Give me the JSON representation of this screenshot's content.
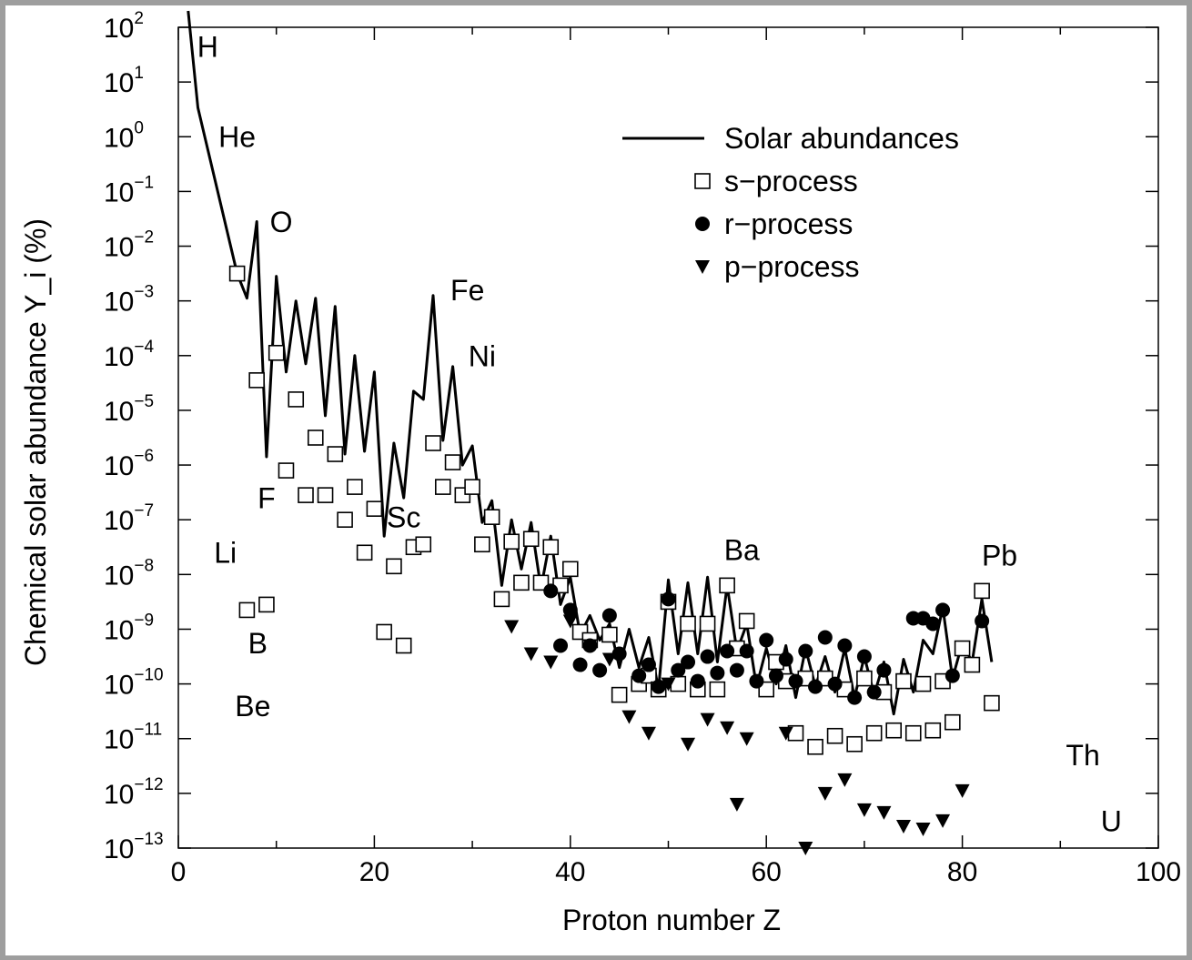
{
  "chart_data": {
    "type": "scatter",
    "title": "",
    "xlabel": "Proton number Z",
    "ylabel": "Chemical solar abundance Y_i (%)",
    "xlim": [
      0,
      100
    ],
    "ylim_log10": [
      -13,
      2
    ],
    "y_scale": "log",
    "x_ticks": [
      0,
      20,
      40,
      60,
      80,
      100
    ],
    "y_ticks": [
      {
        "base": "10",
        "exp": "2"
      },
      {
        "base": "10",
        "exp": "1"
      },
      {
        "base": "10",
        "exp": "0"
      },
      {
        "base": "10",
        "exp": "−1"
      },
      {
        "base": "10",
        "exp": "−2"
      },
      {
        "base": "10",
        "exp": "−3"
      },
      {
        "base": "10",
        "exp": "−4"
      },
      {
        "base": "10",
        "exp": "−5"
      },
      {
        "base": "10",
        "exp": "−6"
      },
      {
        "base": "10",
        "exp": "−7"
      },
      {
        "base": "10",
        "exp": "−8"
      },
      {
        "base": "10",
        "exp": "−9"
      },
      {
        "base": "10",
        "exp": "−10"
      },
      {
        "base": "10",
        "exp": "−11"
      },
      {
        "base": "10",
        "exp": "−12"
      },
      {
        "base": "10",
        "exp": "−13"
      }
    ],
    "legend": {
      "placement": "top-right",
      "entries": [
        {
          "label": "Solar abundances",
          "marker": "line"
        },
        {
          "label": "s−process",
          "marker": "open-square"
        },
        {
          "label": "r−process",
          "marker": "filled-circle"
        },
        {
          "label": "p−process",
          "marker": "filled-triangle-down"
        }
      ]
    },
    "series": [
      {
        "name": "Solar abundances",
        "marker": "line",
        "points": [
          [
            1,
            2.3
          ],
          [
            2,
            0.53
          ],
          [
            6,
            -2.5
          ],
          [
            7,
            -2.95
          ],
          [
            8,
            -1.55
          ],
          [
            9,
            -5.85
          ],
          [
            10,
            -2.55
          ],
          [
            11,
            -4.3
          ],
          [
            12,
            -3.0
          ],
          [
            13,
            -4.15
          ],
          [
            14,
            -2.95
          ],
          [
            15,
            -5.1
          ],
          [
            16,
            -3.1
          ],
          [
            17,
            -5.8
          ],
          [
            18,
            -4.0
          ],
          [
            19,
            -5.75
          ],
          [
            20,
            -4.3
          ],
          [
            21,
            -7.3
          ],
          [
            22,
            -5.6
          ],
          [
            23,
            -6.6
          ],
          [
            24,
            -4.65
          ],
          [
            25,
            -4.8
          ],
          [
            26,
            -2.9
          ],
          [
            27,
            -5.55
          ],
          [
            28,
            -4.2
          ],
          [
            29,
            -6.0
          ],
          [
            30,
            -5.65
          ],
          [
            31,
            -7.05
          ],
          [
            32,
            -6.65
          ],
          [
            33,
            -8.2
          ],
          [
            34,
            -7.0
          ],
          [
            35,
            -7.9
          ],
          [
            36,
            -7.05
          ],
          [
            37,
            -8.25
          ],
          [
            38,
            -7.3
          ],
          [
            39,
            -8.55
          ],
          [
            40,
            -8.05
          ],
          [
            41,
            -9.1
          ],
          [
            42,
            -8.75
          ],
          [
            43,
            -9.2
          ],
          [
            44,
            -8.9
          ],
          [
            45,
            -9.7
          ],
          [
            46,
            -9.0
          ],
          [
            47,
            -9.7
          ],
          [
            48,
            -9.15
          ],
          [
            49,
            -10.1
          ],
          [
            50,
            -8.1
          ],
          [
            51,
            -9.45
          ],
          [
            52,
            -8.15
          ],
          [
            53,
            -9.45
          ],
          [
            54,
            -8.05
          ],
          [
            55,
            -9.6
          ],
          [
            56,
            -8.2
          ],
          [
            57,
            -9.4
          ],
          [
            58,
            -8.9
          ],
          [
            59,
            -10.05
          ],
          [
            60,
            -9.35
          ],
          [
            61,
            -10.0
          ],
          [
            62,
            -9.3
          ],
          [
            63,
            -10.25
          ],
          [
            64,
            -9.35
          ],
          [
            65,
            -10.05
          ],
          [
            66,
            -9.5
          ],
          [
            67,
            -10.15
          ],
          [
            68,
            -9.35
          ],
          [
            69,
            -10.25
          ],
          [
            70,
            -9.5
          ],
          [
            71,
            -10.2
          ],
          [
            72,
            -9.6
          ],
          [
            73,
            -10.55
          ],
          [
            74,
            -9.55
          ],
          [
            75,
            -10.15
          ],
          [
            76,
            -9.2
          ],
          [
            77,
            -9.45
          ],
          [
            78,
            -8.6
          ],
          [
            79,
            -9.9
          ],
          [
            80,
            -9.25
          ],
          [
            81,
            -9.6
          ],
          [
            82,
            -8.45
          ],
          [
            83,
            -9.6
          ]
        ]
      },
      {
        "name": "s−process",
        "marker": "open-square",
        "points": [
          [
            6,
            -2.5
          ],
          [
            8,
            -4.45
          ],
          [
            10,
            -3.95
          ],
          [
            11,
            -6.1
          ],
          [
            12,
            -4.8
          ],
          [
            13,
            -6.55
          ],
          [
            14,
            -5.5
          ],
          [
            15,
            -6.55
          ],
          [
            16,
            -5.8
          ],
          [
            17,
            -7.0
          ],
          [
            18,
            -6.4
          ],
          [
            19,
            -7.6
          ],
          [
            20,
            -6.8
          ],
          [
            21,
            -9.05
          ],
          [
            22,
            -7.85
          ],
          [
            23,
            -9.3
          ],
          [
            24,
            -7.5
          ],
          [
            25,
            -7.45
          ],
          [
            26,
            -5.6
          ],
          [
            27,
            -6.4
          ],
          [
            28,
            -5.95
          ],
          [
            29,
            -6.55
          ],
          [
            30,
            -6.4
          ],
          [
            31,
            -7.45
          ],
          [
            32,
            -6.95
          ],
          [
            33,
            -8.45
          ],
          [
            34,
            -7.4
          ],
          [
            35,
            -8.15
          ],
          [
            36,
            -7.35
          ],
          [
            37,
            -8.15
          ],
          [
            38,
            -7.5
          ],
          [
            39,
            -8.2
          ],
          [
            40,
            -7.9
          ],
          [
            41,
            -9.05
          ],
          [
            42,
            -9.2
          ],
          [
            44,
            -9.1
          ],
          [
            45,
            -10.2
          ],
          [
            47,
            -10.0
          ],
          [
            48,
            -9.85
          ],
          [
            49,
            -10.1
          ],
          [
            50,
            -8.5
          ],
          [
            51,
            -10.0
          ],
          [
            52,
            -8.9
          ],
          [
            53,
            -10.1
          ],
          [
            54,
            -8.9
          ],
          [
            55,
            -10.1
          ],
          [
            56,
            -8.2
          ],
          [
            57,
            -9.35
          ],
          [
            58,
            -8.85
          ],
          [
            60,
            -10.1
          ],
          [
            61,
            -9.6
          ],
          [
            62,
            -9.95
          ],
          [
            63,
            -10.9
          ],
          [
            64,
            -9.9
          ],
          [
            65,
            -11.15
          ],
          [
            66,
            -9.9
          ],
          [
            67,
            -10.95
          ],
          [
            68,
            -10.1
          ],
          [
            69,
            -11.1
          ],
          [
            70,
            -9.9
          ],
          [
            71,
            -10.9
          ],
          [
            72,
            -10.15
          ],
          [
            73,
            -10.85
          ],
          [
            74,
            -9.95
          ],
          [
            75,
            -10.9
          ],
          [
            76,
            -10.0
          ],
          [
            77,
            -10.85
          ],
          [
            78,
            -9.95
          ],
          [
            79,
            -10.7
          ],
          [
            80,
            -9.35
          ],
          [
            81,
            -9.65
          ],
          [
            82,
            -8.3
          ],
          [
            83,
            -10.35
          ],
          [
            7,
            -8.65
          ],
          [
            9,
            -8.55
          ]
        ]
      },
      {
        "name": "r−process",
        "marker": "filled-circle",
        "points": [
          [
            38,
            -8.3
          ],
          [
            39,
            -9.3
          ],
          [
            40,
            -8.65
          ],
          [
            41,
            -9.65
          ],
          [
            42,
            -9.3
          ],
          [
            43,
            -9.75
          ],
          [
            44,
            -8.75
          ],
          [
            45,
            -9.45
          ],
          [
            47,
            -9.85
          ],
          [
            48,
            -9.65
          ],
          [
            49,
            -10.05
          ],
          [
            50,
            -8.45
          ],
          [
            51,
            -9.75
          ],
          [
            52,
            -9.6
          ],
          [
            53,
            -9.95
          ],
          [
            54,
            -9.5
          ],
          [
            55,
            -9.8
          ],
          [
            56,
            -9.4
          ],
          [
            57,
            -9.75
          ],
          [
            58,
            -9.4
          ],
          [
            59,
            -9.95
          ],
          [
            60,
            -9.2
          ],
          [
            61,
            -9.85
          ],
          [
            62,
            -9.55
          ],
          [
            63,
            -9.95
          ],
          [
            64,
            -9.4
          ],
          [
            65,
            -10.05
          ],
          [
            66,
            -9.15
          ],
          [
            67,
            -10.0
          ],
          [
            68,
            -9.3
          ],
          [
            69,
            -10.25
          ],
          [
            70,
            -9.5
          ],
          [
            71,
            -10.15
          ],
          [
            72,
            -9.75
          ],
          [
            75,
            -8.8
          ],
          [
            76,
            -8.8
          ],
          [
            77,
            -8.9
          ],
          [
            78,
            -8.65
          ],
          [
            79,
            -9.85
          ],
          [
            82,
            -8.85
          ]
        ]
      },
      {
        "name": "p−process",
        "marker": "filled-triangle-down",
        "points": [
          [
            34,
            -8.95
          ],
          [
            36,
            -9.45
          ],
          [
            38,
            -9.6
          ],
          [
            40,
            -8.85
          ],
          [
            42,
            -9.3
          ],
          [
            44,
            -9.55
          ],
          [
            46,
            -10.6
          ],
          [
            48,
            -10.9
          ],
          [
            50,
            -10.0
          ],
          [
            52,
            -11.1
          ],
          [
            54,
            -10.65
          ],
          [
            56,
            -10.8
          ],
          [
            58,
            -11.0
          ],
          [
            57,
            -12.2
          ],
          [
            62,
            -10.9
          ],
          [
            64,
            -13.0
          ],
          [
            66,
            -12.0
          ],
          [
            68,
            -11.75
          ],
          [
            70,
            -12.3
          ],
          [
            72,
            -12.35
          ],
          [
            74,
            -12.6
          ],
          [
            76,
            -12.65
          ],
          [
            78,
            -12.5
          ],
          [
            80,
            -11.95
          ]
        ]
      }
    ],
    "annotations": [
      {
        "text": "H",
        "z": 3,
        "log10": 1.6
      },
      {
        "text": "He",
        "z": 6,
        "log10": -0.05
      },
      {
        "text": "O",
        "z": 10.5,
        "log10": -1.6
      },
      {
        "text": "Fe",
        "z": 29.5,
        "log10": -2.85
      },
      {
        "text": "Ni",
        "z": 31,
        "log10": -4.05
      },
      {
        "text": "F",
        "z": 9,
        "log10": -6.65
      },
      {
        "text": "Sc",
        "z": 23,
        "log10": -7.0
      },
      {
        "text": "Li",
        "z": 4.8,
        "log10": -7.65
      },
      {
        "text": "B",
        "z": 8.1,
        "log10": -9.3
      },
      {
        "text": "Be",
        "z": 7.6,
        "log10": -10.45
      },
      {
        "text": "Ba",
        "z": 57.5,
        "log10": -7.6
      },
      {
        "text": "Pb",
        "z": 83.8,
        "log10": -7.7
      },
      {
        "text": "Th",
        "z": 92.3,
        "log10": -11.35
      },
      {
        "text": "U",
        "z": 95.2,
        "log10": -12.55
      }
    ]
  }
}
